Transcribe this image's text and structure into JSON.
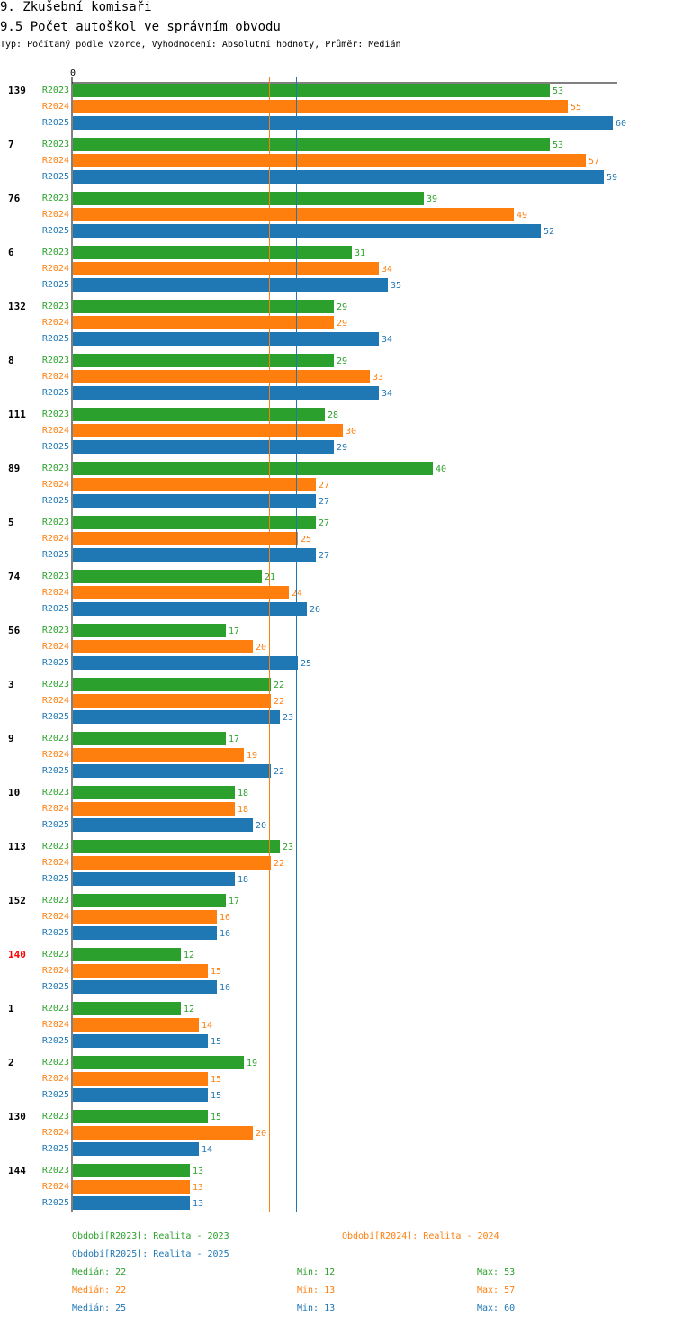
{
  "header": {
    "title": "9. Zkušební komisaři",
    "subtitle": "9.5 Počet autoškol ve správním obvodu",
    "description": "Typ: Počítaný podle vzorce, Vyhodnocení: Absolutní hodnoty, Průměr: Medián"
  },
  "colors": {
    "R2023": "#2ca02c",
    "R2024": "#ff7f0e",
    "R2025": "#1f77b4",
    "highlight": "#ff0000"
  },
  "chart_data": {
    "type": "bar",
    "orientation": "horizontal",
    "axis_zero_label": "0",
    "categories": [
      "139",
      "7",
      "76",
      "6",
      "132",
      "8",
      "111",
      "89",
      "5",
      "74",
      "56",
      "3",
      "9",
      "10",
      "113",
      "152",
      "140",
      "1",
      "2",
      "130",
      "144"
    ],
    "highlighted_category": "140",
    "series": [
      {
        "name": "R2023",
        "values": [
          53,
          53,
          39,
          31,
          29,
          29,
          28,
          40,
          27,
          21,
          17,
          22,
          17,
          18,
          23,
          17,
          12,
          12,
          19,
          15,
          13
        ]
      },
      {
        "name": "R2024",
        "values": [
          55,
          57,
          49,
          34,
          29,
          33,
          30,
          27,
          25,
          24,
          20,
          22,
          19,
          18,
          22,
          16,
          15,
          14,
          15,
          20,
          13
        ]
      },
      {
        "name": "R2025",
        "values": [
          60,
          59,
          52,
          35,
          34,
          34,
          29,
          27,
          27,
          26,
          25,
          23,
          22,
          20,
          18,
          16,
          16,
          15,
          15,
          14,
          13
        ]
      }
    ],
    "reference_lines": [
      {
        "series": "R2024",
        "value": 22
      },
      {
        "series": "R2025",
        "value": 25
      }
    ]
  },
  "legend": {
    "items": [
      {
        "series": "R2023",
        "label": "Období[R2023]: Realita - 2023"
      },
      {
        "series": "R2024",
        "label": "Období[R2024]: Realita - 2024"
      },
      {
        "series": "R2025",
        "label": "Období[R2025]: Realita - 2025"
      }
    ],
    "stats": [
      {
        "series": "R2023",
        "median": "Medián: 22",
        "min": "Min: 12",
        "max": "Max: 53"
      },
      {
        "series": "R2024",
        "median": "Medián: 22",
        "min": "Min: 13",
        "max": "Max: 57"
      },
      {
        "series": "R2025",
        "median": "Medián: 25",
        "min": "Min: 13",
        "max": "Max: 60"
      }
    ]
  }
}
